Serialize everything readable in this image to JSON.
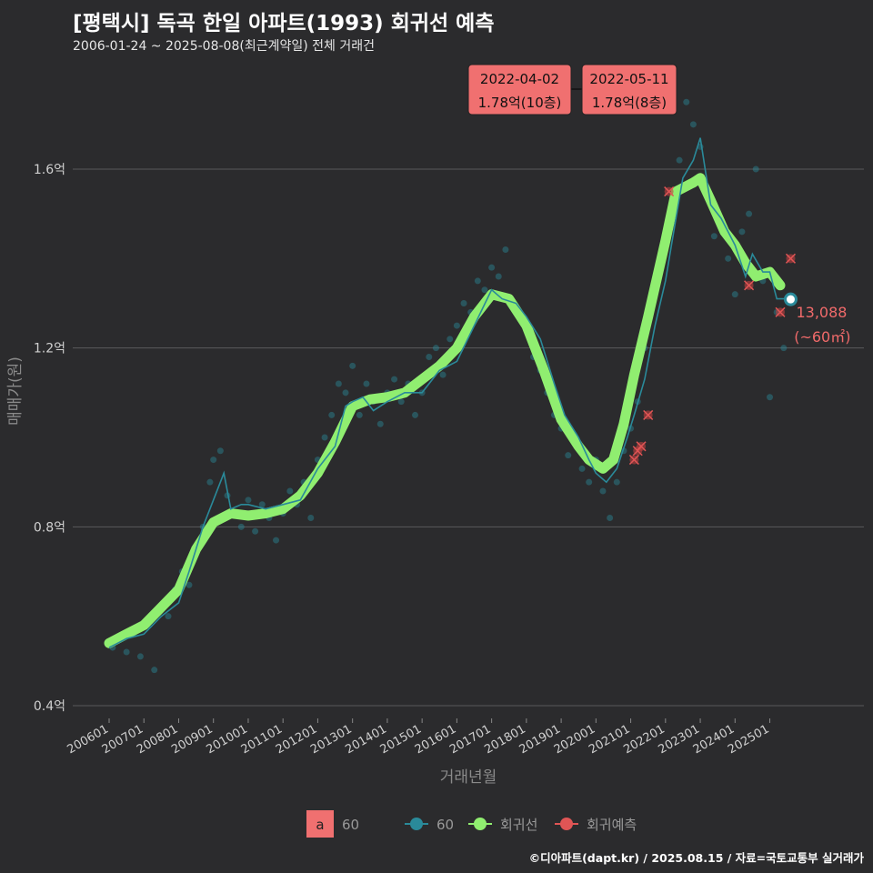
{
  "chart_data": {
    "type": "line",
    "title": "[평택시] 독곡 한일 아파트(1993) 회귀선 예측",
    "subtitle": "2006-01-24 ~ 2025-08-08(최근계약일) 전체 거래건",
    "xlabel": "거래년월",
    "ylabel": "매매가(원)",
    "y_ticks": [
      {
        "v": 0.4,
        "label": "0.4억"
      },
      {
        "v": 0.8,
        "label": "0.8억"
      },
      {
        "v": 1.2,
        "label": "1.2억"
      },
      {
        "v": 1.6,
        "label": "1.6억"
      }
    ],
    "ylim": [
      0.4,
      1.8
    ],
    "x_ticks": [
      {
        "t": 2006.0,
        "label": "200601"
      },
      {
        "t": 2007.0,
        "label": "200701"
      },
      {
        "t": 2008.0,
        "label": "200801"
      },
      {
        "t": 2009.0,
        "label": "200901"
      },
      {
        "t": 2010.0,
        "label": "201001"
      },
      {
        "t": 2011.0,
        "label": "201101"
      },
      {
        "t": 2012.0,
        "label": "201201"
      },
      {
        "t": 2013.0,
        "label": "201301"
      },
      {
        "t": 2014.0,
        "label": "201401"
      },
      {
        "t": 2015.0,
        "label": "201501"
      },
      {
        "t": 2016.0,
        "label": "201601"
      },
      {
        "t": 2017.0,
        "label": "201701"
      },
      {
        "t": 2018.0,
        "label": "201801"
      },
      {
        "t": 2019.0,
        "label": "201901"
      },
      {
        "t": 2020.0,
        "label": "202001"
      },
      {
        "t": 2021.0,
        "label": "202101"
      },
      {
        "t": 2022.0,
        "label": "202201"
      },
      {
        "t": 2023.0,
        "label": "202301"
      },
      {
        "t": 2024.0,
        "label": "202401"
      },
      {
        "t": 2025.0,
        "label": "202501"
      }
    ],
    "xlim": [
      2005.6,
      2027.0
    ],
    "grid": true,
    "series": [
      {
        "name": "60",
        "kind": "monthly-avg",
        "color": "#2a8a9a",
        "points": [
          [
            2006.0,
            0.53
          ],
          [
            2006.5,
            0.55
          ],
          [
            2007.0,
            0.56
          ],
          [
            2007.5,
            0.6
          ],
          [
            2008.0,
            0.63
          ],
          [
            2008.3,
            0.7
          ],
          [
            2008.7,
            0.8
          ],
          [
            2009.0,
            0.86
          ],
          [
            2009.3,
            0.92
          ],
          [
            2009.5,
            0.84
          ],
          [
            2009.8,
            0.85
          ],
          [
            2010.0,
            0.85
          ],
          [
            2010.5,
            0.84
          ],
          [
            2011.0,
            0.85
          ],
          [
            2011.5,
            0.86
          ],
          [
            2012.0,
            0.93
          ],
          [
            2012.5,
            0.98
          ],
          [
            2012.8,
            1.07
          ],
          [
            2013.0,
            1.08
          ],
          [
            2013.3,
            1.09
          ],
          [
            2013.6,
            1.06
          ],
          [
            2014.0,
            1.08
          ],
          [
            2014.5,
            1.1
          ],
          [
            2015.0,
            1.1
          ],
          [
            2015.5,
            1.15
          ],
          [
            2016.0,
            1.17
          ],
          [
            2016.5,
            1.25
          ],
          [
            2017.0,
            1.33
          ],
          [
            2017.3,
            1.31
          ],
          [
            2017.7,
            1.3
          ],
          [
            2018.0,
            1.27
          ],
          [
            2018.4,
            1.22
          ],
          [
            2018.8,
            1.12
          ],
          [
            2019.1,
            1.05
          ],
          [
            2019.5,
            1.0
          ],
          [
            2019.8,
            0.95
          ],
          [
            2020.0,
            0.92
          ],
          [
            2020.3,
            0.9
          ],
          [
            2020.6,
            0.93
          ],
          [
            2020.9,
            1.0
          ],
          [
            2021.1,
            1.05
          ],
          [
            2021.4,
            1.13
          ],
          [
            2021.7,
            1.25
          ],
          [
            2022.0,
            1.35
          ],
          [
            2022.3,
            1.49
          ],
          [
            2022.5,
            1.58
          ],
          [
            2022.8,
            1.62
          ],
          [
            2023.0,
            1.67
          ],
          [
            2023.3,
            1.52
          ],
          [
            2023.6,
            1.49
          ],
          [
            2024.0,
            1.43
          ],
          [
            2024.3,
            1.36
          ],
          [
            2024.5,
            1.41
          ],
          [
            2024.8,
            1.37
          ],
          [
            2025.0,
            1.37
          ],
          [
            2025.2,
            1.31
          ],
          [
            2025.5,
            1.31
          ]
        ]
      },
      {
        "name": "회귀선",
        "kind": "regression",
        "color": "#90ee70",
        "points": [
          [
            2006.0,
            0.54
          ],
          [
            2006.5,
            0.56
          ],
          [
            2007.0,
            0.58
          ],
          [
            2007.5,
            0.62
          ],
          [
            2008.0,
            0.66
          ],
          [
            2008.5,
            0.75
          ],
          [
            2009.0,
            0.81
          ],
          [
            2009.5,
            0.83
          ],
          [
            2010.0,
            0.825
          ],
          [
            2010.5,
            0.83
          ],
          [
            2011.0,
            0.84
          ],
          [
            2011.5,
            0.87
          ],
          [
            2012.0,
            0.92
          ],
          [
            2012.5,
            0.99
          ],
          [
            2013.0,
            1.07
          ],
          [
            2013.5,
            1.085
          ],
          [
            2014.0,
            1.09
          ],
          [
            2014.5,
            1.1
          ],
          [
            2015.0,
            1.13
          ],
          [
            2015.5,
            1.16
          ],
          [
            2016.0,
            1.2
          ],
          [
            2016.5,
            1.27
          ],
          [
            2017.0,
            1.32
          ],
          [
            2017.5,
            1.31
          ],
          [
            2018.0,
            1.25
          ],
          [
            2018.5,
            1.15
          ],
          [
            2019.0,
            1.04
          ],
          [
            2019.5,
            0.98
          ],
          [
            2019.8,
            0.95
          ],
          [
            2020.2,
            0.93
          ],
          [
            2020.5,
            0.95
          ],
          [
            2020.8,
            1.03
          ],
          [
            2021.1,
            1.14
          ],
          [
            2021.5,
            1.27
          ],
          [
            2022.0,
            1.44
          ],
          [
            2022.3,
            1.55
          ],
          [
            2022.8,
            1.57
          ],
          [
            2023.0,
            1.58
          ],
          [
            2023.3,
            1.53
          ],
          [
            2023.7,
            1.46
          ],
          [
            2024.0,
            1.43
          ],
          [
            2024.3,
            1.39
          ],
          [
            2024.6,
            1.36
          ],
          [
            2025.0,
            1.37
          ],
          [
            2025.3,
            1.34
          ]
        ]
      }
    ],
    "scatter": [
      [
        2006.1,
        0.53
      ],
      [
        2006.3,
        0.55
      ],
      [
        2006.5,
        0.52
      ],
      [
        2006.7,
        0.56
      ],
      [
        2006.9,
        0.51
      ],
      [
        2007.1,
        0.58
      ],
      [
        2007.3,
        0.48
      ],
      [
        2007.5,
        0.62
      ],
      [
        2007.7,
        0.6
      ],
      [
        2007.9,
        0.66
      ],
      [
        2008.1,
        0.7
      ],
      [
        2008.3,
        0.67
      ],
      [
        2008.5,
        0.75
      ],
      [
        2008.7,
        0.8
      ],
      [
        2008.9,
        0.9
      ],
      [
        2009.0,
        0.95
      ],
      [
        2009.2,
        0.97
      ],
      [
        2009.4,
        0.87
      ],
      [
        2009.6,
        0.83
      ],
      [
        2009.8,
        0.8
      ],
      [
        2010.0,
        0.86
      ],
      [
        2010.2,
        0.79
      ],
      [
        2010.4,
        0.85
      ],
      [
        2010.6,
        0.82
      ],
      [
        2010.8,
        0.77
      ],
      [
        2011.0,
        0.83
      ],
      [
        2011.2,
        0.88
      ],
      [
        2011.4,
        0.85
      ],
      [
        2011.6,
        0.9
      ],
      [
        2011.8,
        0.82
      ],
      [
        2012.0,
        0.95
      ],
      [
        2012.2,
        1.0
      ],
      [
        2012.4,
        1.05
      ],
      [
        2012.6,
        1.12
      ],
      [
        2012.8,
        1.1
      ],
      [
        2013.0,
        1.16
      ],
      [
        2013.2,
        1.05
      ],
      [
        2013.4,
        1.12
      ],
      [
        2013.6,
        1.08
      ],
      [
        2013.8,
        1.03
      ],
      [
        2014.0,
        1.1
      ],
      [
        2014.2,
        1.13
      ],
      [
        2014.4,
        1.08
      ],
      [
        2014.6,
        1.12
      ],
      [
        2014.8,
        1.05
      ],
      [
        2015.0,
        1.1
      ],
      [
        2015.2,
        1.18
      ],
      [
        2015.4,
        1.2
      ],
      [
        2015.6,
        1.14
      ],
      [
        2015.8,
        1.22
      ],
      [
        2016.0,
        1.25
      ],
      [
        2016.2,
        1.3
      ],
      [
        2016.4,
        1.28
      ],
      [
        2016.6,
        1.35
      ],
      [
        2016.8,
        1.33
      ],
      [
        2017.0,
        1.38
      ],
      [
        2017.2,
        1.36
      ],
      [
        2017.4,
        1.42
      ],
      [
        2017.6,
        1.3
      ],
      [
        2017.8,
        1.28
      ],
      [
        2018.0,
        1.24
      ],
      [
        2018.2,
        1.18
      ],
      [
        2018.4,
        1.15
      ],
      [
        2018.6,
        1.1
      ],
      [
        2018.8,
        1.05
      ],
      [
        2019.0,
        1.02
      ],
      [
        2019.2,
        0.96
      ],
      [
        2019.4,
        1.0
      ],
      [
        2019.6,
        0.93
      ],
      [
        2019.8,
        0.9
      ],
      [
        2020.0,
        0.95
      ],
      [
        2020.2,
        0.88
      ],
      [
        2020.4,
        0.82
      ],
      [
        2020.6,
        0.9
      ],
      [
        2020.8,
        0.97
      ],
      [
        2021.0,
        1.02
      ],
      [
        2021.2,
        1.08
      ],
      [
        2021.4,
        1.2
      ],
      [
        2021.6,
        1.3
      ],
      [
        2021.8,
        1.38
      ],
      [
        2022.0,
        1.45
      ],
      [
        2022.2,
        1.5
      ],
      [
        2022.4,
        1.62
      ],
      [
        2022.6,
        1.75
      ],
      [
        2022.8,
        1.7
      ],
      [
        2023.0,
        1.65
      ],
      [
        2023.2,
        1.55
      ],
      [
        2023.4,
        1.45
      ],
      [
        2023.6,
        1.48
      ],
      [
        2023.8,
        1.4
      ],
      [
        2024.0,
        1.32
      ],
      [
        2024.2,
        1.46
      ],
      [
        2024.4,
        1.5
      ],
      [
        2024.6,
        1.6
      ],
      [
        2024.8,
        1.35
      ],
      [
        2025.0,
        1.09
      ],
      [
        2025.2,
        1.28
      ],
      [
        2025.4,
        1.2
      ]
    ],
    "forecast": [
      [
        2021.1,
        0.95
      ],
      [
        2021.2,
        0.97
      ],
      [
        2021.3,
        0.98
      ],
      [
        2021.5,
        1.05
      ],
      [
        2022.1,
        1.55
      ],
      [
        2024.4,
        1.34
      ],
      [
        2025.3,
        1.28
      ],
      [
        2025.6,
        1.4
      ]
    ],
    "latest_point": {
      "t": 2025.6,
      "v": 1.3088,
      "value_label": "13,088",
      "area_label": "(~60㎡)"
    },
    "annotations": [
      {
        "date": "2022-04-02",
        "price": "1.78억(10층)"
      },
      {
        "date": "2022-05-11",
        "price": "1.78억(8층)"
      }
    ],
    "legend": {
      "position": "bottom",
      "area_box": "a",
      "area_label": "60",
      "items": [
        {
          "label": "60",
          "color": "#2a8a9a"
        },
        {
          "label": "회귀선",
          "color": "#90ee70"
        },
        {
          "label": "회귀예측",
          "color": "#e05555"
        }
      ]
    }
  },
  "credit": "©디아파트(dapt.kr) / 2025.08.15 / 자료=국토교통부 실거래가"
}
